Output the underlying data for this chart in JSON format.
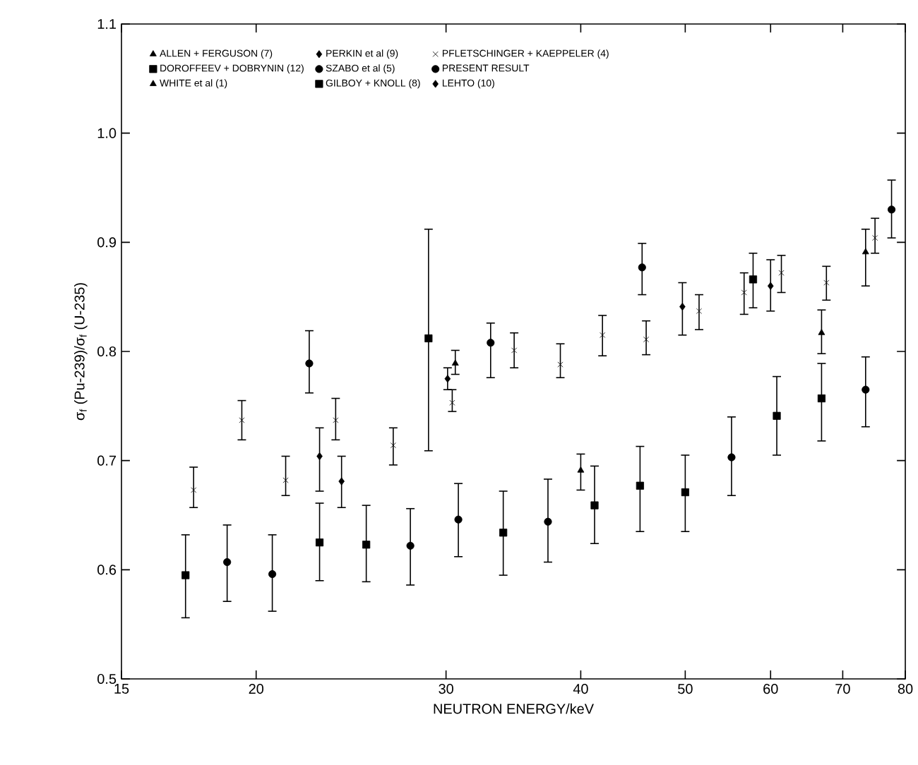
{
  "chart_data": {
    "type": "scatter",
    "xlabel": "NEUTRON ENERGY/keV",
    "ylabel": "σ$_{f}$ (Pu-239)/σ$_{f}$ (U-235)",
    "log": "x",
    "xlim": [
      15,
      80
    ],
    "ylim": [
      0.5,
      1.1
    ],
    "xticks": [
      15,
      20,
      30,
      40,
      50,
      60,
      70,
      80
    ],
    "yticks": [
      0.5,
      0.6,
      0.7,
      0.8,
      0.9,
      {
        "value": 1,
        "label": "1.0"
      },
      1.1
    ],
    "legend": "top left",
    "grid": false,
    "series": [
      {
        "name": "ALLEN + FERGUSON (7)",
        "color": "#000000",
        "marker": "triangle",
        "x": [
          30.6,
          73.5
        ],
        "values": [
          0.789,
          0.891
        ],
        "errors": [
          [
            0.779,
            0.801
          ],
          [
            0.86,
            0.912
          ]
        ]
      },
      {
        "name": "PERKIN et al (9)",
        "color": "#000000",
        "marker": "diamond",
        "x": [
          22.9,
          30.1
        ],
        "values": [
          0.704,
          0.775
        ],
        "errors": [
          [
            0.672,
            0.73
          ],
          [
            0.765,
            0.785
          ]
        ]
      },
      {
        "name": "PFLETSCHINGER + KAEPPELER (4)",
        "color": "#000000",
        "marker": "cross",
        "x": [
          17.5,
          19.4,
          21.3,
          23.7,
          26.8,
          30.4,
          34.7,
          38.3,
          41.9,
          46.0,
          51.5,
          56.7,
          61.4,
          67.6,
          75.0
        ],
        "values": [
          0.673,
          0.737,
          0.682,
          0.737,
          0.714,
          0.753,
          0.801,
          0.788,
          0.815,
          0.811,
          0.837,
          0.854,
          0.872,
          0.863,
          0.904
        ],
        "errors": [
          [
            0.657,
            0.694
          ],
          [
            0.719,
            0.755
          ],
          [
            0.668,
            0.704
          ],
          [
            0.719,
            0.757
          ],
          [
            0.696,
            0.73
          ],
          [
            0.745,
            0.765
          ],
          [
            0.785,
            0.817
          ],
          [
            0.776,
            0.807
          ],
          [
            0.796,
            0.833
          ],
          [
            0.797,
            0.828
          ],
          [
            0.82,
            0.852
          ],
          [
            0.834,
            0.872
          ],
          [
            0.854,
            0.888
          ],
          [
            0.847,
            0.878
          ],
          [
            0.89,
            0.922
          ]
        ]
      },
      {
        "name": "DOROFFEEV + DOBRYNIN (12)",
        "color": "#000000",
        "marker": "square",
        "x": [
          28.9,
          57.8
        ],
        "values": [
          0.812,
          0.866
        ],
        "errors": [
          [
            0.709,
            0.912
          ],
          [
            0.84,
            0.89
          ]
        ]
      },
      {
        "name": "SZABO et al (5)",
        "color": "#000000",
        "marker": "circle",
        "x": [
          22.4,
          33.0,
          45.6,
          77.7
        ],
        "values": [
          0.789,
          0.808,
          0.877,
          0.93
        ],
        "errors": [
          [
            0.762,
            0.819
          ],
          [
            0.776,
            0.826
          ],
          [
            0.852,
            0.899
          ],
          [
            0.904,
            0.957
          ]
        ]
      },
      {
        "name": "PRESENT RESULT",
        "color": "#000000",
        "marker": "circle",
        "x": [
          18.8,
          20.7,
          27.8,
          30.8,
          37.3,
          55.2,
          73.5
        ],
        "values": [
          0.607,
          0.596,
          0.622,
          0.646,
          0.644,
          0.703,
          0.765
        ],
        "errors": [
          [
            0.571,
            0.641
          ],
          [
            0.562,
            0.632
          ],
          [
            0.586,
            0.656
          ],
          [
            0.612,
            0.679
          ],
          [
            0.607,
            0.683
          ],
          [
            0.668,
            0.74
          ],
          [
            0.731,
            0.795
          ]
        ]
      },
      {
        "name": "WHITE et al (1)",
        "color": "#000000",
        "marker": "triangle",
        "x": [
          40.0,
          66.9
        ],
        "values": [
          0.691,
          0.817
        ],
        "errors": [
          [
            0.673,
            0.706
          ],
          [
            0.798,
            0.838
          ]
        ]
      },
      {
        "name": "GILBOY + KNOLL (8)",
        "color": "#000000",
        "marker": "square",
        "x": [
          17.2,
          22.9,
          25.3,
          33.9,
          41.2,
          45.4,
          50.0,
          60.8,
          66.9
        ],
        "values": [
          0.595,
          0.625,
          0.623,
          0.634,
          0.659,
          0.677,
          0.671,
          0.741,
          0.757
        ],
        "errors": [
          [
            0.556,
            0.632
          ],
          [
            0.59,
            0.661
          ],
          [
            0.589,
            0.659
          ],
          [
            0.595,
            0.672
          ],
          [
            0.624,
            0.695
          ],
          [
            0.635,
            0.713
          ],
          [
            0.635,
            0.705
          ],
          [
            0.705,
            0.777
          ],
          [
            0.718,
            0.789
          ]
        ]
      },
      {
        "name": "LEHTO (10)",
        "color": "#000000",
        "marker": "diamond",
        "x": [
          24.0,
          49.7,
          60.0
        ],
        "values": [
          0.681,
          0.841,
          0.86
        ],
        "errors": [
          [
            0.657,
            0.704
          ],
          [
            0.815,
            0.863
          ],
          [
            0.837,
            0.884
          ]
        ]
      }
    ]
  }
}
